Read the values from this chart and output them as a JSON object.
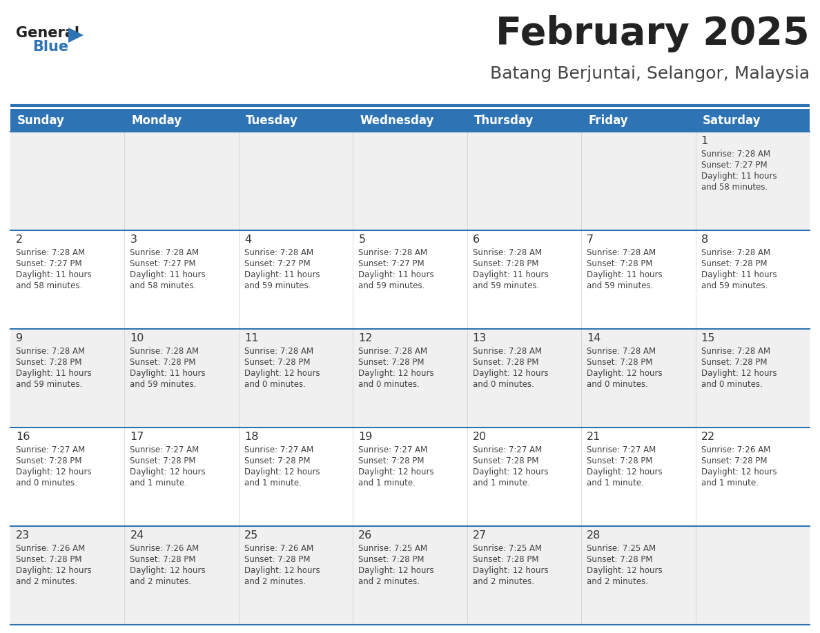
{
  "title": "February 2025",
  "subtitle": "Batang Berjuntai, Selangor, Malaysia",
  "header_bg_color": "#2e74b5",
  "header_text_color": "#ffffff",
  "row_bg_colors": [
    "#f0f0f0",
    "#ffffff",
    "#f0f0f0",
    "#ffffff",
    "#f0f0f0"
  ],
  "day_names": [
    "Sunday",
    "Monday",
    "Tuesday",
    "Wednesday",
    "Thursday",
    "Friday",
    "Saturday"
  ],
  "border_color": "#2e74b5",
  "text_color": "#404040",
  "day_number_color": "#333333",
  "title_color": "#222222",
  "subtitle_color": "#444444",
  "logo_general_color": "#222222",
  "logo_blue_color": "#2e74b5",
  "logo_triangle_color": "#2e74b5",
  "calendar_data": [
    [
      {
        "day": null,
        "sunrise": null,
        "sunset": null,
        "daylight": null
      },
      {
        "day": null,
        "sunrise": null,
        "sunset": null,
        "daylight": null
      },
      {
        "day": null,
        "sunrise": null,
        "sunset": null,
        "daylight": null
      },
      {
        "day": null,
        "sunrise": null,
        "sunset": null,
        "daylight": null
      },
      {
        "day": null,
        "sunrise": null,
        "sunset": null,
        "daylight": null
      },
      {
        "day": null,
        "sunrise": null,
        "sunset": null,
        "daylight": null
      },
      {
        "day": 1,
        "sunrise": "7:28 AM",
        "sunset": "7:27 PM",
        "daylight_line1": "Daylight: 11 hours",
        "daylight_line2": "and 58 minutes."
      }
    ],
    [
      {
        "day": 2,
        "sunrise": "7:28 AM",
        "sunset": "7:27 PM",
        "daylight_line1": "Daylight: 11 hours",
        "daylight_line2": "and 58 minutes."
      },
      {
        "day": 3,
        "sunrise": "7:28 AM",
        "sunset": "7:27 PM",
        "daylight_line1": "Daylight: 11 hours",
        "daylight_line2": "and 58 minutes."
      },
      {
        "day": 4,
        "sunrise": "7:28 AM",
        "sunset": "7:27 PM",
        "daylight_line1": "Daylight: 11 hours",
        "daylight_line2": "and 59 minutes."
      },
      {
        "day": 5,
        "sunrise": "7:28 AM",
        "sunset": "7:27 PM",
        "daylight_line1": "Daylight: 11 hours",
        "daylight_line2": "and 59 minutes."
      },
      {
        "day": 6,
        "sunrise": "7:28 AM",
        "sunset": "7:28 PM",
        "daylight_line1": "Daylight: 11 hours",
        "daylight_line2": "and 59 minutes."
      },
      {
        "day": 7,
        "sunrise": "7:28 AM",
        "sunset": "7:28 PM",
        "daylight_line1": "Daylight: 11 hours",
        "daylight_line2": "and 59 minutes."
      },
      {
        "day": 8,
        "sunrise": "7:28 AM",
        "sunset": "7:28 PM",
        "daylight_line1": "Daylight: 11 hours",
        "daylight_line2": "and 59 minutes."
      }
    ],
    [
      {
        "day": 9,
        "sunrise": "7:28 AM",
        "sunset": "7:28 PM",
        "daylight_line1": "Daylight: 11 hours",
        "daylight_line2": "and 59 minutes."
      },
      {
        "day": 10,
        "sunrise": "7:28 AM",
        "sunset": "7:28 PM",
        "daylight_line1": "Daylight: 11 hours",
        "daylight_line2": "and 59 minutes."
      },
      {
        "day": 11,
        "sunrise": "7:28 AM",
        "sunset": "7:28 PM",
        "daylight_line1": "Daylight: 12 hours",
        "daylight_line2": "and 0 minutes."
      },
      {
        "day": 12,
        "sunrise": "7:28 AM",
        "sunset": "7:28 PM",
        "daylight_line1": "Daylight: 12 hours",
        "daylight_line2": "and 0 minutes."
      },
      {
        "day": 13,
        "sunrise": "7:28 AM",
        "sunset": "7:28 PM",
        "daylight_line1": "Daylight: 12 hours",
        "daylight_line2": "and 0 minutes."
      },
      {
        "day": 14,
        "sunrise": "7:28 AM",
        "sunset": "7:28 PM",
        "daylight_line1": "Daylight: 12 hours",
        "daylight_line2": "and 0 minutes."
      },
      {
        "day": 15,
        "sunrise": "7:28 AM",
        "sunset": "7:28 PM",
        "daylight_line1": "Daylight: 12 hours",
        "daylight_line2": "and 0 minutes."
      }
    ],
    [
      {
        "day": 16,
        "sunrise": "7:27 AM",
        "sunset": "7:28 PM",
        "daylight_line1": "Daylight: 12 hours",
        "daylight_line2": "and 0 minutes."
      },
      {
        "day": 17,
        "sunrise": "7:27 AM",
        "sunset": "7:28 PM",
        "daylight_line1": "Daylight: 12 hours",
        "daylight_line2": "and 1 minute."
      },
      {
        "day": 18,
        "sunrise": "7:27 AM",
        "sunset": "7:28 PM",
        "daylight_line1": "Daylight: 12 hours",
        "daylight_line2": "and 1 minute."
      },
      {
        "day": 19,
        "sunrise": "7:27 AM",
        "sunset": "7:28 PM",
        "daylight_line1": "Daylight: 12 hours",
        "daylight_line2": "and 1 minute."
      },
      {
        "day": 20,
        "sunrise": "7:27 AM",
        "sunset": "7:28 PM",
        "daylight_line1": "Daylight: 12 hours",
        "daylight_line2": "and 1 minute."
      },
      {
        "day": 21,
        "sunrise": "7:27 AM",
        "sunset": "7:28 PM",
        "daylight_line1": "Daylight: 12 hours",
        "daylight_line2": "and 1 minute."
      },
      {
        "day": 22,
        "sunrise": "7:26 AM",
        "sunset": "7:28 PM",
        "daylight_line1": "Daylight: 12 hours",
        "daylight_line2": "and 1 minute."
      }
    ],
    [
      {
        "day": 23,
        "sunrise": "7:26 AM",
        "sunset": "7:28 PM",
        "daylight_line1": "Daylight: 12 hours",
        "daylight_line2": "and 2 minutes."
      },
      {
        "day": 24,
        "sunrise": "7:26 AM",
        "sunset": "7:28 PM",
        "daylight_line1": "Daylight: 12 hours",
        "daylight_line2": "and 2 minutes."
      },
      {
        "day": 25,
        "sunrise": "7:26 AM",
        "sunset": "7:28 PM",
        "daylight_line1": "Daylight: 12 hours",
        "daylight_line2": "and 2 minutes."
      },
      {
        "day": 26,
        "sunrise": "7:25 AM",
        "sunset": "7:28 PM",
        "daylight_line1": "Daylight: 12 hours",
        "daylight_line2": "and 2 minutes."
      },
      {
        "day": 27,
        "sunrise": "7:25 AM",
        "sunset": "7:28 PM",
        "daylight_line1": "Daylight: 12 hours",
        "daylight_line2": "and 2 minutes."
      },
      {
        "day": 28,
        "sunrise": "7:25 AM",
        "sunset": "7:28 PM",
        "daylight_line1": "Daylight: 12 hours",
        "daylight_line2": "and 2 minutes."
      },
      {
        "day": null,
        "sunrise": null,
        "sunset": null,
        "daylight_line1": null,
        "daylight_line2": null
      }
    ]
  ]
}
